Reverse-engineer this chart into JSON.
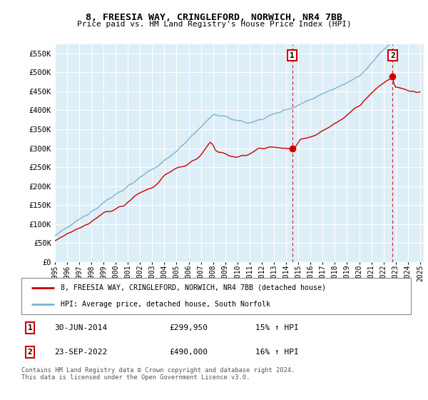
{
  "title": "8, FREESIA WAY, CRINGLEFORD, NORWICH, NR4 7BB",
  "subtitle": "Price paid vs. HM Land Registry's House Price Index (HPI)",
  "ylim": [
    0,
    575000
  ],
  "yticks": [
    0,
    50000,
    100000,
    150000,
    200000,
    250000,
    300000,
    350000,
    400000,
    450000,
    500000,
    550000
  ],
  "ytick_labels": [
    "£0",
    "£50K",
    "£100K",
    "£150K",
    "£200K",
    "£250K",
    "£300K",
    "£350K",
    "£400K",
    "£450K",
    "£500K",
    "£550K"
  ],
  "hpi_color": "#7ab3d4",
  "price_color": "#cc0000",
  "bg_color": "#ddeef7",
  "grid_color": "#ffffff",
  "marker1_x": 2014.5,
  "marker1_price": 299950,
  "marker1_date_str": "30-JUN-2014",
  "marker1_pct": "15% ↑ HPI",
  "marker2_x": 2022.75,
  "marker2_price": 490000,
  "marker2_date_str": "23-SEP-2022",
  "marker2_pct": "16% ↑ HPI",
  "legend_line1": "8, FREESIA WAY, CRINGLEFORD, NORWICH, NR4 7BB (detached house)",
  "legend_line2": "HPI: Average price, detached house, South Norfolk",
  "footer": "Contains HM Land Registry data © Crown copyright and database right 2024.\nThis data is licensed under the Open Government Licence v3.0.",
  "x_start_year": 1995,
  "x_end_year": 2025
}
